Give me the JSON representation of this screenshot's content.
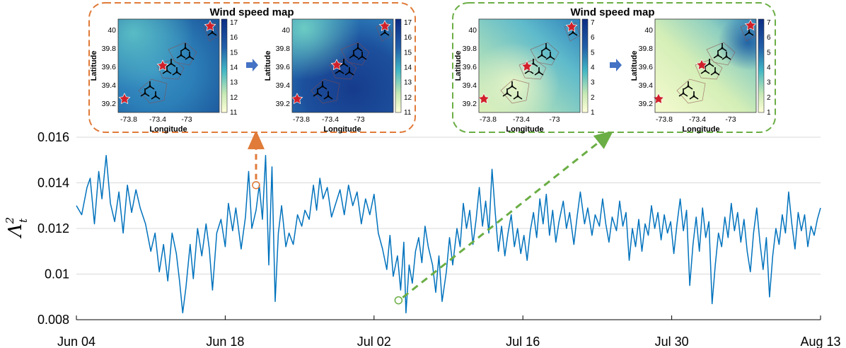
{
  "chart_data": {
    "type": "line",
    "ylabel_parts": {
      "base": "Λ",
      "sup": "2",
      "sub": "t"
    },
    "xlabel": "",
    "x_ticks": [
      "Jun 04",
      "Jun 18",
      "Jul 02",
      "Jul 16",
      "Jul 30",
      "Aug 13"
    ],
    "x_range_days": [
      0,
      70
    ],
    "y_ticks": [
      "0.008",
      "0.01",
      "0.012",
      "0.014",
      "0.016"
    ],
    "ylim": [
      0.008,
      0.016
    ],
    "grid": "horizontal",
    "series": [
      {
        "color": "#0072BD",
        "points": [
          [
            0,
            0.013
          ],
          [
            0.5,
            0.0126
          ],
          [
            1,
            0.0138
          ],
          [
            1.3,
            0.0142
          ],
          [
            1.7,
            0.0122
          ],
          [
            2.1,
            0.0145
          ],
          [
            2.4,
            0.0133
          ],
          [
            2.8,
            0.0152
          ],
          [
            3.2,
            0.0131
          ],
          [
            3.6,
            0.0123
          ],
          [
            4,
            0.0136
          ],
          [
            4.4,
            0.0118
          ],
          [
            4.8,
            0.0139
          ],
          [
            5.2,
            0.0127
          ],
          [
            5.6,
            0.0137
          ],
          [
            6,
            0.0129
          ],
          [
            6.5,
            0.0122
          ],
          [
            7,
            0.011
          ],
          [
            7.4,
            0.0118
          ],
          [
            7.8,
            0.0101
          ],
          [
            8.2,
            0.0113
          ],
          [
            8.6,
            0.0097
          ],
          [
            9,
            0.0118
          ],
          [
            9.4,
            0.0109
          ],
          [
            9.7,
            0.0097
          ],
          [
            10,
            0.0083
          ],
          [
            10.3,
            0.0094
          ],
          [
            10.7,
            0.0113
          ],
          [
            11,
            0.0098
          ],
          [
            11.4,
            0.012
          ],
          [
            11.8,
            0.0108
          ],
          [
            12.2,
            0.0122
          ],
          [
            12.5,
            0.0111
          ],
          [
            12.8,
            0.0093
          ],
          [
            13.2,
            0.0118
          ],
          [
            13.6,
            0.0124
          ],
          [
            14,
            0.0112
          ],
          [
            14.3,
            0.0131
          ],
          [
            14.7,
            0.0119
          ],
          [
            15,
            0.0129
          ],
          [
            15.5,
            0.0111
          ],
          [
            15.9,
            0.0125
          ],
          [
            16.2,
            0.0145
          ],
          [
            16.5,
            0.012
          ],
          [
            16.9,
            0.0128
          ],
          [
            17.2,
            0.0139
          ],
          [
            17.5,
            0.0124
          ],
          [
            17.8,
            0.0152
          ],
          [
            18.1,
            0.0104
          ],
          [
            18.4,
            0.0147
          ],
          [
            18.7,
            0.0088
          ],
          [
            19,
            0.0118
          ],
          [
            19.3,
            0.013
          ],
          [
            19.7,
            0.0112
          ],
          [
            20,
            0.0118
          ],
          [
            20.4,
            0.0113
          ],
          [
            20.8,
            0.0126
          ],
          [
            21.2,
            0.0121
          ],
          [
            21.5,
            0.0128
          ],
          [
            21.9,
            0.0124
          ],
          [
            22.3,
            0.0139
          ],
          [
            22.6,
            0.0128
          ],
          [
            22.9,
            0.0142
          ],
          [
            23.2,
            0.0133
          ],
          [
            23.6,
            0.0138
          ],
          [
            24,
            0.0125
          ],
          [
            24.4,
            0.0131
          ],
          [
            24.8,
            0.0137
          ],
          [
            25.2,
            0.0126
          ],
          [
            25.6,
            0.0139
          ],
          [
            26,
            0.013
          ],
          [
            26.4,
            0.0136
          ],
          [
            26.8,
            0.0122
          ],
          [
            27.2,
            0.0133
          ],
          [
            27.6,
            0.0126
          ],
          [
            28,
            0.0135
          ],
          [
            28.4,
            0.0118
          ],
          [
            28.8,
            0.0111
          ],
          [
            29.2,
            0.0102
          ],
          [
            29.5,
            0.0117
          ],
          [
            29.8,
            0.0099
          ],
          [
            30.2,
            0.0108
          ],
          [
            30.5,
            0.0093
          ],
          [
            30.8,
            0.0114
          ],
          [
            31,
            0.0083
          ],
          [
            31.3,
            0.0104
          ],
          [
            31.6,
            0.0096
          ],
          [
            31.9,
            0.011
          ],
          [
            32.2,
            0.0116
          ],
          [
            32.5,
            0.0105
          ],
          [
            32.8,
            0.0121
          ],
          [
            33.1,
            0.0112
          ],
          [
            33.5,
            0.0104
          ],
          [
            33.8,
            0.0092
          ],
          [
            34.1,
            0.0108
          ],
          [
            34.4,
            0.0088
          ],
          [
            34.8,
            0.0101
          ],
          [
            35.1,
            0.0116
          ],
          [
            35.4,
            0.0104
          ],
          [
            35.8,
            0.012
          ],
          [
            36.1,
            0.0112
          ],
          [
            36.4,
            0.0131
          ],
          [
            36.7,
            0.012
          ],
          [
            37,
            0.0128
          ],
          [
            37.3,
            0.0113
          ],
          [
            37.6,
            0.0124
          ],
          [
            37.9,
            0.0138
          ],
          [
            38.2,
            0.0121
          ],
          [
            38.5,
            0.0132
          ],
          [
            38.8,
            0.0118
          ],
          [
            39.1,
            0.0146
          ],
          [
            39.4,
            0.0127
          ],
          [
            39.7,
            0.011
          ],
          [
            40,
            0.0121
          ],
          [
            40.3,
            0.0108
          ],
          [
            40.6,
            0.0118
          ],
          [
            40.9,
            0.0126
          ],
          [
            41.2,
            0.0112
          ],
          [
            41.5,
            0.012
          ],
          [
            41.8,
            0.0109
          ],
          [
            42.1,
            0.0117
          ],
          [
            42.4,
            0.0106
          ],
          [
            42.7,
            0.0119
          ],
          [
            43,
            0.0127
          ],
          [
            43.3,
            0.0116
          ],
          [
            43.6,
            0.0133
          ],
          [
            43.9,
            0.0122
          ],
          [
            44.2,
            0.0135
          ],
          [
            44.5,
            0.0117
          ],
          [
            44.8,
            0.0128
          ],
          [
            45.1,
            0.0114
          ],
          [
            45.4,
            0.0123
          ],
          [
            45.8,
            0.0132
          ],
          [
            46.1,
            0.012
          ],
          [
            46.4,
            0.0127
          ],
          [
            46.8,
            0.0113
          ],
          [
            47.1,
            0.0125
          ],
          [
            47.4,
            0.0136
          ],
          [
            47.8,
            0.0122
          ],
          [
            48.1,
            0.0129
          ],
          [
            48.5,
            0.0117
          ],
          [
            48.8,
            0.0126
          ],
          [
            49.2,
            0.0121
          ],
          [
            49.5,
            0.0133
          ],
          [
            49.8,
            0.0122
          ],
          [
            50.1,
            0.0114
          ],
          [
            50.4,
            0.0125
          ],
          [
            50.8,
            0.0119
          ],
          [
            51.1,
            0.0132
          ],
          [
            51.4,
            0.0121
          ],
          [
            51.7,
            0.0127
          ],
          [
            52,
            0.0106
          ],
          [
            52.3,
            0.012
          ],
          [
            52.6,
            0.0112
          ],
          [
            52.9,
            0.0124
          ],
          [
            53.2,
            0.011
          ],
          [
            53.5,
            0.0122
          ],
          [
            53.8,
            0.0117
          ],
          [
            54.1,
            0.013
          ],
          [
            54.4,
            0.012
          ],
          [
            54.7,
            0.0127
          ],
          [
            55,
            0.0115
          ],
          [
            55.3,
            0.0126
          ],
          [
            55.6,
            0.0118
          ],
          [
            55.9,
            0.0123
          ],
          [
            56.2,
            0.0109
          ],
          [
            56.5,
            0.0122
          ],
          [
            56.8,
            0.0133
          ],
          [
            57.1,
            0.0119
          ],
          [
            57.4,
            0.0128
          ],
          [
            57.7,
            0.0095
          ],
          [
            58,
            0.0113
          ],
          [
            58.3,
            0.0125
          ],
          [
            58.6,
            0.011
          ],
          [
            58.9,
            0.0129
          ],
          [
            59.2,
            0.0116
          ],
          [
            59.5,
            0.0123
          ],
          [
            59.8,
            0.0087
          ],
          [
            60.1,
            0.0104
          ],
          [
            60.4,
            0.0118
          ],
          [
            60.7,
            0.0112
          ],
          [
            61,
            0.0125
          ],
          [
            61.3,
            0.0116
          ],
          [
            61.6,
            0.0131
          ],
          [
            61.9,
            0.0119
          ],
          [
            62.2,
            0.0127
          ],
          [
            62.5,
            0.0114
          ],
          [
            62.8,
            0.0124
          ],
          [
            63.1,
            0.011
          ],
          [
            63.4,
            0.0101
          ],
          [
            63.7,
            0.0118
          ],
          [
            64,
            0.0129
          ],
          [
            64.3,
            0.0114
          ],
          [
            64.6,
            0.0102
          ],
          [
            64.9,
            0.0116
          ],
          [
            65.2,
            0.009
          ],
          [
            65.5,
            0.0108
          ],
          [
            65.8,
            0.012
          ],
          [
            66.1,
            0.0113
          ],
          [
            66.4,
            0.0126
          ],
          [
            66.7,
            0.0118
          ],
          [
            67,
            0.0136
          ],
          [
            67.3,
            0.0122
          ],
          [
            67.6,
            0.0111
          ],
          [
            67.9,
            0.0127
          ],
          [
            68.2,
            0.0119
          ],
          [
            68.5,
            0.0126
          ],
          [
            68.8,
            0.0112
          ],
          [
            69.1,
            0.0121
          ],
          [
            69.4,
            0.0117
          ],
          [
            69.7,
            0.0124
          ],
          [
            70,
            0.0129
          ]
        ]
      }
    ],
    "annotations": [
      {
        "x": 16.9,
        "y": 0.0139,
        "color": "#E07B39"
      },
      {
        "x": 30.3,
        "y": 0.00885,
        "color": "#6BAE45"
      }
    ],
    "insets": [
      {
        "title": "Wind speed map",
        "border_color": "#E07B39",
        "arrow_color": "#4472C4",
        "xlabel": "Longitude",
        "ylabel": "Latitude",
        "x_ticks": [
          "-73.8",
          "-73.4",
          "-73"
        ],
        "y_ticks": [
          "40",
          "39.8",
          "39.6",
          "39.4",
          "39.2"
        ],
        "colorbar_ticks": [
          "17",
          "16",
          "15",
          "14",
          "13",
          "12",
          "11"
        ],
        "colorbar_range": [
          11,
          17
        ]
      },
      {
        "title": "Wind speed map",
        "border_color": "#6BAE45",
        "arrow_color": "#4472C4",
        "xlabel": "Longitude",
        "ylabel": "Latitude",
        "x_ticks": [
          "-73.8",
          "-73.4",
          "-73"
        ],
        "y_ticks": [
          "40",
          "39.8",
          "39.6",
          "39.4",
          "39.2"
        ],
        "colorbar_ticks": [
          "7",
          "6",
          "5",
          "4",
          "3",
          "2",
          "1"
        ],
        "colorbar_range": [
          1,
          7
        ]
      }
    ]
  }
}
